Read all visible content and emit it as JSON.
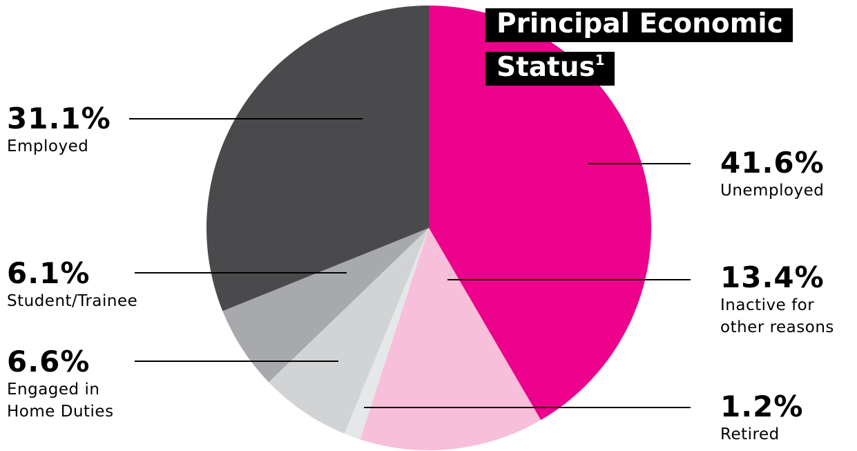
{
  "chart_data": {
    "type": "pie",
    "title": "Principal Economic Status",
    "title_footnote": "1",
    "categories": [
      "Unemployed",
      "Inactive for other reasons",
      "Retired",
      "Engaged in Home Duties",
      "Student/Trainee",
      "Employed"
    ],
    "values": [
      41.6,
      13.4,
      1.2,
      6.6,
      6.1,
      31.1
    ],
    "value_labels": [
      "41.6%",
      "13.4%",
      "1.2%",
      "6.6%",
      "6.1%",
      "31.1%"
    ],
    "colors": [
      "#ec008c",
      "#f7bfd9",
      "#e6e7e8",
      "#d1d3d4",
      "#a7a9ac",
      "#4a4a4c"
    ]
  }
}
